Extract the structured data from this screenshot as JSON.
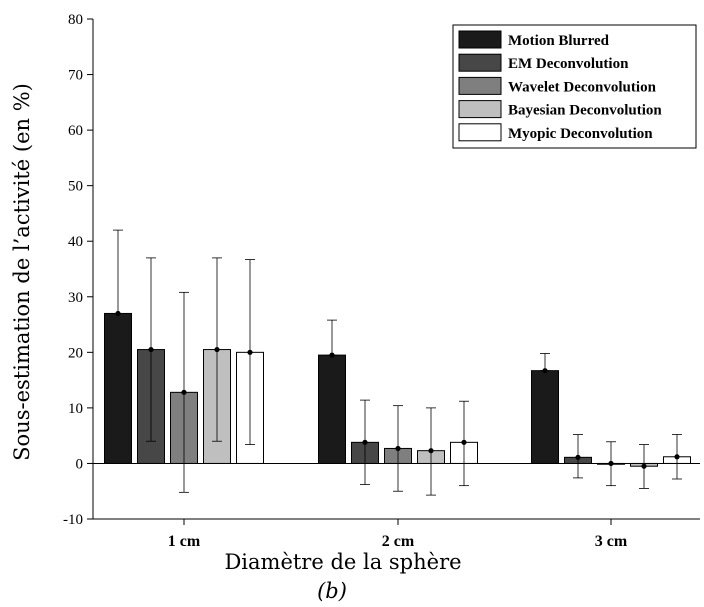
{
  "chart_data": {
    "type": "bar",
    "title": "",
    "xlabel": "Diamètre de la sphère",
    "ylabel": "Sous-estimation de l’activité (en %)",
    "caption": "(b)",
    "categories": [
      "1 cm",
      "2 cm",
      "3 cm"
    ],
    "ylim": [
      -10,
      80
    ],
    "yticks": [
      -10,
      0,
      10,
      20,
      30,
      40,
      50,
      60,
      70,
      80
    ],
    "grid": false,
    "legend_position": "top-right",
    "series": [
      {
        "name": "Motion Blurred",
        "color": "#1a1a1a",
        "values": [
          27,
          19.5,
          16.7
        ],
        "err_low": [
          27,
          19.5,
          16.7
        ],
        "err_high": [
          42,
          25.8,
          19.8
        ]
      },
      {
        "name": "EM Deconvolution",
        "color": "#474747",
        "values": [
          20.5,
          3.8,
          1.1
        ],
        "err_low": [
          4,
          -3.8,
          -2.6
        ],
        "err_high": [
          37,
          11.4,
          5.2
        ]
      },
      {
        "name": "Wavelet Deconvolution",
        "color": "#7f7f7f",
        "values": [
          12.8,
          2.7,
          0
        ],
        "err_low": [
          -5.2,
          -5,
          -4
        ],
        "err_high": [
          30.8,
          10.4,
          3.9
        ]
      },
      {
        "name": "Bayesian Deconvolution",
        "color": "#bfbfbf",
        "values": [
          20.5,
          2.3,
          -0.5
        ],
        "err_low": [
          4,
          -5.7,
          -4.5
        ],
        "err_high": [
          37,
          10,
          3.4
        ]
      },
      {
        "name": "Myopic Deconvolution",
        "color": "#ffffff",
        "values": [
          20,
          3.8,
          1.2
        ],
        "err_low": [
          3.4,
          -4,
          -2.8
        ],
        "err_high": [
          36.7,
          11.2,
          5.2
        ]
      }
    ]
  }
}
